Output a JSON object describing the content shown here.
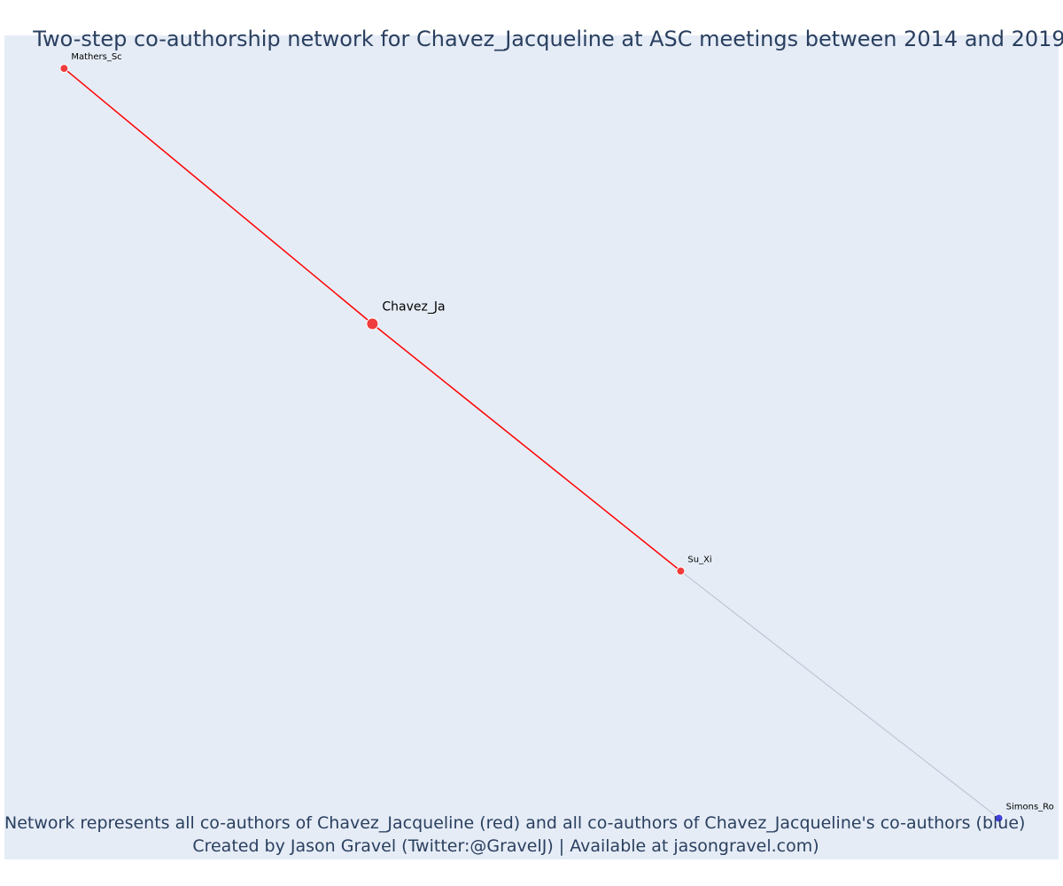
{
  "chart_data": {
    "type": "network",
    "title": "Two-step co-authorship network for Chavez_Jacqueline at ASC meetings between 2014 and 2019",
    "nodes": [
      {
        "id": "Chavez_Ja",
        "label": "Chavez_Ja",
        "x": 0.31,
        "y": 0.65,
        "color": "#ef3b3b",
        "role": "focal"
      },
      {
        "id": "Mathers_Sc",
        "label": "Mathers_Sc",
        "x": 0.0,
        "y": 0.96,
        "color": "#ef3b3b",
        "role": "co-author"
      },
      {
        "id": "Su_Xi",
        "label": "Su_Xi",
        "x": 0.62,
        "y": 0.35,
        "color": "#ef3b3b",
        "role": "co-author"
      },
      {
        "id": "Simons_Ro",
        "label": "Simons_Ro",
        "x": 0.94,
        "y": 0.05,
        "color": "#4040e0",
        "role": "co-author-of-co-author"
      }
    ],
    "edges": [
      {
        "source": "Mathers_Sc",
        "target": "Chavez_Ja",
        "color": "#ff0000"
      },
      {
        "source": "Chavez_Ja",
        "target": "Su_Xi",
        "color": "#ff0000"
      },
      {
        "source": "Su_Xi",
        "target": "Simons_Ro",
        "color": "#b8bfcf"
      }
    ],
    "xlim": [
      -0.06,
      1.0
    ],
    "ylim": [
      0.0,
      1.0
    ],
    "grid": false,
    "background": "#e5ecf6",
    "annotations": [
      "Network represents all co-authors of Chavez_Jacqueline (red) and all co-authors of Chavez_Jacqueline's co-authors (blue)",
      "Created by Jason Gravel (Twitter:@GravelJ) | Available at jasongravel.com)"
    ]
  }
}
